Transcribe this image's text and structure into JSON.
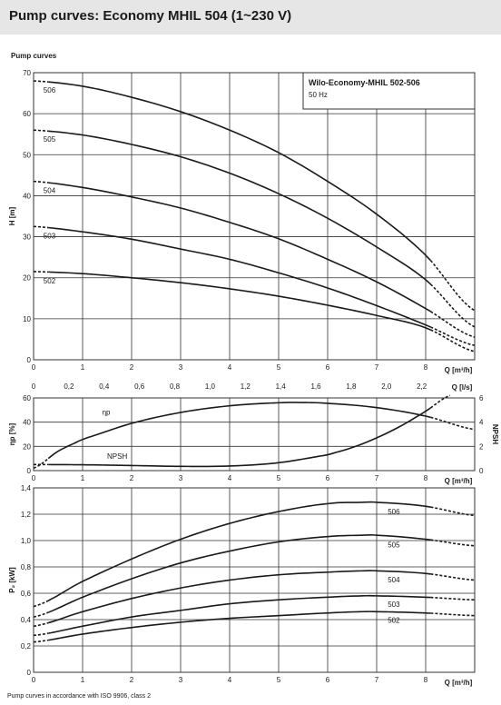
{
  "page": {
    "title": "Pump curves: Economy MHIL 504 (1~230 V)",
    "section_label": "Pump curves",
    "footnote": "Pump curves in accordance with ISO 9906, class 2"
  },
  "colors": {
    "curve": "#1a1a1a",
    "grid": "#333333",
    "header_bg": "#e6e6e6"
  },
  "chart_data": [
    {
      "type": "line",
      "legend": {
        "title": "Wilo-Economy-MHIL 502-506",
        "subtitle": "50 Hz",
        "placement": "top-right"
      },
      "xlabel": "Q [m³/h]",
      "x2label": "Q [l/s]",
      "ylabel": "H [m]",
      "xlim": [
        0,
        9
      ],
      "ylim": [
        0,
        70
      ],
      "xticks": [
        0,
        1,
        2,
        3,
        4,
        5,
        6,
        7,
        8
      ],
      "yticks": [
        0,
        10,
        20,
        30,
        40,
        50,
        60,
        70
      ],
      "x2ticks": [
        0,
        0.2,
        0.4,
        0.6,
        0.8,
        1.0,
        1.2,
        1.4,
        1.6,
        1.8,
        2.0,
        2.2
      ],
      "x2tick_labels": [
        "0",
        "0,2",
        "0,4",
        "0,6",
        "0,8",
        "1,0",
        "1,2",
        "1,4",
        "1,6",
        "1,8",
        "2,0",
        "2,2"
      ],
      "grid": true,
      "series": [
        {
          "name": "506",
          "x": [
            0,
            1,
            2,
            3,
            4,
            5,
            6,
            7,
            8,
            9
          ],
          "y": [
            68,
            66.7,
            64,
            60.5,
            56,
            50.5,
            43.5,
            35.5,
            25.5,
            12
          ],
          "solid_range": [
            0.3,
            8.1
          ]
        },
        {
          "name": "505",
          "x": [
            0,
            1,
            2,
            3,
            4,
            5,
            6,
            7,
            8,
            9
          ],
          "y": [
            56,
            54.8,
            52.5,
            49.5,
            45.5,
            40.5,
            34.5,
            27.5,
            19.5,
            8
          ],
          "solid_range": [
            0.3,
            8.1
          ]
        },
        {
          "name": "504",
          "x": [
            0,
            1,
            2,
            3,
            4,
            5,
            6,
            7,
            8,
            9
          ],
          "y": [
            43.5,
            42,
            39.7,
            37,
            33.5,
            29.5,
            24.5,
            19,
            12.5,
            5.5
          ],
          "solid_range": [
            0.3,
            8.1
          ]
        },
        {
          "name": "503",
          "x": [
            0,
            1,
            2,
            3,
            4,
            5,
            6,
            7,
            8,
            9
          ],
          "y": [
            32.5,
            31.2,
            29.4,
            27,
            24.5,
            21.2,
            17.5,
            13.2,
            8.5,
            3.5
          ],
          "solid_range": [
            0.3,
            8.1
          ]
        },
        {
          "name": "502",
          "x": [
            0,
            1,
            2,
            3,
            4,
            5,
            6,
            7,
            8,
            9
          ],
          "y": [
            21.5,
            21,
            20,
            18.8,
            17.3,
            15.5,
            13.3,
            10.8,
            7.8,
            2
          ],
          "solid_range": [
            0.3,
            8.1
          ]
        }
      ]
    },
    {
      "type": "line",
      "xlabel": "Q [m³/h]",
      "ylabel": "ηp [%]",
      "y2label": "NPSH",
      "xlim": [
        0,
        9
      ],
      "ylim": [
        0,
        60
      ],
      "y2lim": [
        0,
        6
      ],
      "xticks": [
        0,
        1,
        2,
        3,
        4,
        5,
        6,
        7,
        8
      ],
      "yticks": [
        0,
        20,
        40,
        60
      ],
      "y2ticks": [
        0,
        2,
        4,
        6
      ],
      "grid": true,
      "series": [
        {
          "name": "ηp",
          "axis": "left",
          "x": [
            0,
            0.5,
            1,
            2,
            3,
            4,
            5,
            5.5,
            6,
            7,
            8,
            9
          ],
          "y": [
            2,
            16,
            26,
            39,
            48,
            53.5,
            56,
            56.2,
            55.5,
            52,
            45,
            34
          ],
          "solid_range": [
            0.3,
            8.1
          ]
        },
        {
          "name": "NPSH",
          "axis": "right",
          "x": [
            0,
            1,
            2,
            3,
            4,
            5,
            6,
            6.5,
            7,
            7.5,
            8,
            8.5
          ],
          "y2": [
            0.5,
            0.48,
            0.42,
            0.35,
            0.38,
            0.65,
            1.3,
            1.9,
            2.7,
            3.7,
            4.9,
            6.2
          ],
          "solid_range": [
            0.3,
            8.1
          ]
        }
      ]
    },
    {
      "type": "line",
      "xlabel": "Q [m³/h]",
      "ylabel": "P₂ [kW]",
      "xlim": [
        0,
        9
      ],
      "ylim": [
        0,
        1.4
      ],
      "xticks": [
        0,
        1,
        2,
        3,
        4,
        5,
        6,
        7,
        8
      ],
      "yticks": [
        0,
        0.2,
        0.4,
        0.6,
        0.8,
        1.0,
        1.2,
        1.4
      ],
      "ytick_labels": [
        "0",
        "0,2",
        "0,4",
        "0,6",
        "0,8",
        "1,0",
        "1,2",
        "1,4"
      ],
      "grid": true,
      "series": [
        {
          "name": "506",
          "x": [
            0,
            1,
            2,
            3,
            4,
            5,
            6,
            6.7,
            7,
            8,
            9
          ],
          "y": [
            0.5,
            0.69,
            0.86,
            1.01,
            1.13,
            1.22,
            1.28,
            1.29,
            1.29,
            1.26,
            1.19
          ],
          "solid_range": [
            0.3,
            8.1
          ]
        },
        {
          "name": "505",
          "x": [
            0,
            1,
            2,
            3,
            4,
            5,
            6,
            6.7,
            7,
            8,
            9
          ],
          "y": [
            0.42,
            0.57,
            0.71,
            0.83,
            0.92,
            0.99,
            1.03,
            1.04,
            1.04,
            1.01,
            0.96
          ],
          "solid_range": [
            0.3,
            8.1
          ]
        },
        {
          "name": "504",
          "x": [
            0,
            1,
            2,
            3,
            4,
            5,
            6,
            6.7,
            7,
            8,
            9
          ],
          "y": [
            0.35,
            0.46,
            0.56,
            0.64,
            0.7,
            0.74,
            0.76,
            0.77,
            0.77,
            0.75,
            0.7
          ],
          "solid_range": [
            0.3,
            8.1
          ]
        },
        {
          "name": "503",
          "x": [
            0,
            1,
            2,
            3,
            4,
            5,
            6,
            6.7,
            7,
            8,
            9
          ],
          "y": [
            0.28,
            0.35,
            0.42,
            0.47,
            0.52,
            0.55,
            0.57,
            0.58,
            0.58,
            0.57,
            0.55
          ],
          "solid_range": [
            0.3,
            8.1
          ]
        },
        {
          "name": "502",
          "x": [
            0,
            1,
            2,
            3,
            4,
            5,
            6,
            6.7,
            7,
            8,
            9
          ],
          "y": [
            0.23,
            0.29,
            0.34,
            0.38,
            0.41,
            0.43,
            0.45,
            0.46,
            0.46,
            0.45,
            0.43
          ],
          "solid_range": [
            0.3,
            8.1
          ]
        }
      ]
    }
  ]
}
